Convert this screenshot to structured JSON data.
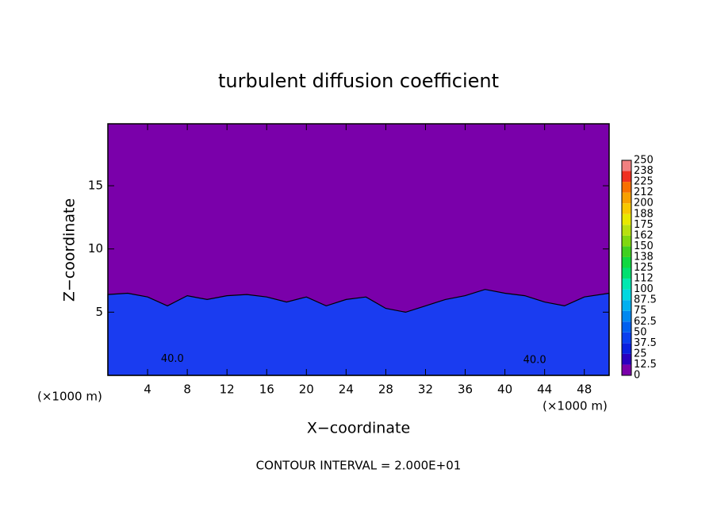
{
  "chart_data": {
    "type": "contour",
    "title": "turbulent diffusion coefficient",
    "x_label": "X−coordinate",
    "y_label": "Z−coordinate",
    "x_unit_left": "(×1000 m)",
    "x_unit_right": "(×1000 m)",
    "footer": "CONTOUR INTERVAL = 2.000E+01",
    "xlim": [
      0,
      50.5
    ],
    "ylim": [
      0,
      19.9
    ],
    "xticks": [
      4,
      8,
      12,
      16,
      20,
      24,
      28,
      32,
      36,
      40,
      44,
      48
    ],
    "yticks": [
      5,
      10,
      15
    ],
    "background_color": "#7a00aa",
    "layer": {
      "color": "#1a3cf0",
      "x": [
        0,
        2,
        4,
        6,
        8,
        10,
        12,
        14,
        16,
        18,
        20,
        22,
        24,
        26,
        28,
        30,
        32,
        34,
        36,
        38,
        40,
        42,
        44,
        46,
        48,
        50.5
      ],
      "z": [
        6.4,
        6.5,
        6.2,
        5.5,
        6.3,
        6.0,
        6.3,
        6.4,
        6.2,
        5.8,
        6.2,
        5.5,
        6.0,
        6.2,
        5.3,
        5.0,
        5.5,
        6.0,
        6.3,
        6.8,
        6.5,
        6.3,
        5.8,
        5.5,
        6.2,
        6.5
      ]
    },
    "annotations": [
      {
        "text": "40.0",
        "x": 6.5,
        "z": 1.3
      },
      {
        "text": "40.0",
        "x": 43.0,
        "z": 1.2
      }
    ],
    "colorbar": {
      "levels": [
        0,
        12.5,
        25,
        37.5,
        50,
        62.5,
        75,
        87.5,
        100,
        112,
        125,
        138,
        150,
        162,
        175,
        188,
        200,
        212,
        225,
        238,
        250
      ],
      "colors": [
        "#7a00aa",
        "#2a00c0",
        "#0a20e0",
        "#0a40f0",
        "#0060f0",
        "#0088f0",
        "#00b0f0",
        "#00d8e0",
        "#00e8b0",
        "#00e070",
        "#10d840",
        "#40d020",
        "#80d810",
        "#b8e010",
        "#e8e800",
        "#f8c800",
        "#f8a000",
        "#f87000",
        "#f03020",
        "#f08080"
      ]
    }
  }
}
